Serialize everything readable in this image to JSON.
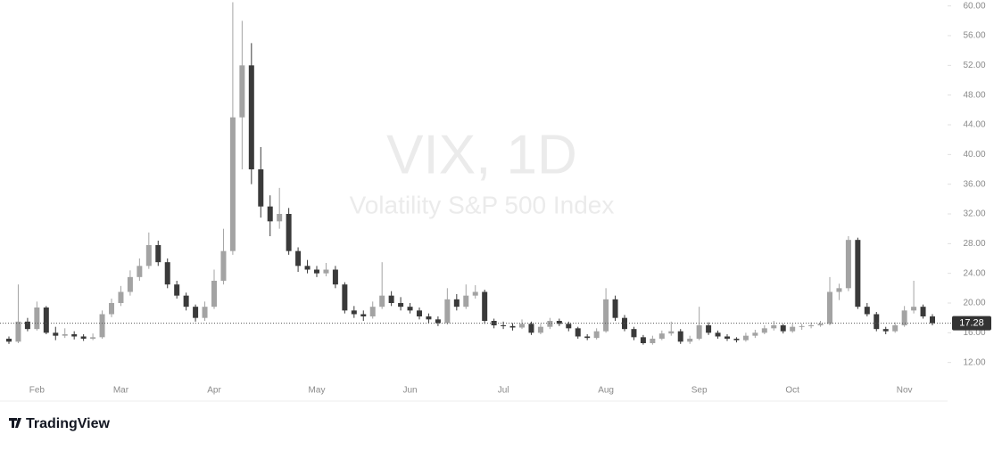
{
  "chart_data": {
    "type": "candlestick",
    "title": "VIX, 1D",
    "subtitle": "Volatility S&P 500 Index",
    "brand": "TradingView",
    "up_color": "#a3a3a3",
    "down_color": "#3a3a3a",
    "ylim": [
      6.8,
      60.8
    ],
    "yticks": [
      {
        "value": 12,
        "label": "12.00"
      },
      {
        "value": 16,
        "label": "16.00"
      },
      {
        "value": 20,
        "label": "20.00"
      },
      {
        "value": 24,
        "label": "24.00"
      },
      {
        "value": 28,
        "label": "28.00"
      },
      {
        "value": 32,
        "label": "32.00"
      },
      {
        "value": 36,
        "label": "36.00"
      },
      {
        "value": 40,
        "label": "40.00"
      },
      {
        "value": 44,
        "label": "44.00"
      },
      {
        "value": 48,
        "label": "48.00"
      },
      {
        "value": 52,
        "label": "52.00"
      },
      {
        "value": 56,
        "label": "56.00"
      },
      {
        "value": 60,
        "label": "60.00"
      }
    ],
    "last_price": 17.28,
    "categories": [
      null,
      null,
      null,
      "Feb",
      null,
      null,
      null,
      null,
      null,
      null,
      null,
      null,
      "Mar",
      null,
      null,
      null,
      null,
      null,
      null,
      null,
      null,
      null,
      "Apr",
      null,
      null,
      null,
      null,
      null,
      null,
      null,
      null,
      null,
      null,
      "May",
      null,
      null,
      null,
      null,
      null,
      null,
      null,
      null,
      null,
      "Jun",
      null,
      null,
      null,
      null,
      null,
      null,
      null,
      null,
      null,
      "Jul",
      null,
      null,
      null,
      null,
      null,
      null,
      null,
      null,
      null,
      null,
      "Aug",
      null,
      null,
      null,
      null,
      null,
      null,
      null,
      null,
      null,
      "Sep",
      null,
      null,
      null,
      null,
      null,
      null,
      null,
      null,
      null,
      "Oct",
      null,
      null,
      null,
      null,
      null,
      null,
      null,
      null,
      null,
      null,
      null,
      "Nov",
      null,
      null,
      null
    ],
    "ohlc": [
      [
        15.2,
        15.5,
        14.5,
        14.8
      ],
      [
        14.8,
        22.5,
        14.6,
        17.5
      ],
      [
        17.5,
        18,
        16.2,
        16.5
      ],
      [
        16.5,
        20.2,
        16.3,
        19.4
      ],
      [
        19.4,
        19.6,
        15.8,
        16.0
      ],
      [
        16.0,
        16.8,
        15.0,
        15.6
      ],
      [
        15.6,
        16.6,
        15.3,
        15.8
      ],
      [
        15.8,
        16.2,
        15.1,
        15.5
      ],
      [
        15.5,
        15.8,
        14.9,
        15.2
      ],
      [
        15.2,
        15.9,
        15.0,
        15.4
      ],
      [
        15.4,
        19.0,
        15.2,
        18.5
      ],
      [
        18.5,
        20.6,
        18.1,
        20.0
      ],
      [
        20.0,
        22.3,
        19.6,
        21.5
      ],
      [
        21.5,
        24.4,
        21.0,
        23.5
      ],
      [
        23.5,
        26.0,
        23.0,
        25.0
      ],
      [
        25.0,
        29.5,
        24.6,
        27.8
      ],
      [
        27.8,
        28.4,
        25.0,
        25.5
      ],
      [
        25.5,
        26.0,
        22.0,
        22.5
      ],
      [
        22.5,
        23.0,
        20.6,
        21.0
      ],
      [
        21.0,
        21.4,
        19.0,
        19.5
      ],
      [
        19.5,
        19.8,
        17.5,
        18.0
      ],
      [
        18.0,
        20.2,
        17.6,
        19.5
      ],
      [
        19.5,
        24.5,
        19.2,
        23.0
      ],
      [
        23.0,
        30.0,
        22.5,
        27.0
      ],
      [
        27.0,
        60.5,
        26.5,
        45.0
      ],
      [
        45.0,
        58.0,
        38.0,
        52.0
      ],
      [
        52.0,
        55.0,
        36.0,
        38.0
      ],
      [
        38.0,
        41.0,
        31.5,
        33.0
      ],
      [
        33.0,
        34.5,
        29.0,
        31.0
      ],
      [
        31.0,
        35.5,
        30.0,
        32.0
      ],
      [
        32.0,
        32.8,
        26.5,
        27.0
      ],
      [
        27.0,
        27.5,
        24.2,
        25.0
      ],
      [
        25.0,
        25.8,
        24.0,
        24.5
      ],
      [
        24.5,
        25.0,
        23.5,
        24.0
      ],
      [
        24.0,
        25.4,
        23.6,
        24.5
      ],
      [
        24.5,
        25.0,
        22.0,
        22.5
      ],
      [
        22.5,
        22.8,
        18.6,
        19.0
      ],
      [
        19.0,
        19.6,
        18.0,
        18.5
      ],
      [
        18.5,
        19.0,
        17.6,
        18.2
      ],
      [
        18.2,
        20.2,
        17.9,
        19.5
      ],
      [
        19.5,
        25.5,
        19.2,
        21.0
      ],
      [
        21.0,
        21.6,
        19.6,
        20.0
      ],
      [
        20.0,
        20.8,
        19.0,
        19.5
      ],
      [
        19.5,
        20.0,
        18.6,
        19.0
      ],
      [
        19.0,
        19.4,
        17.8,
        18.2
      ],
      [
        18.2,
        18.6,
        17.3,
        17.8
      ],
      [
        17.8,
        18.2,
        16.9,
        17.3
      ],
      [
        17.3,
        22.0,
        17.1,
        20.5
      ],
      [
        20.5,
        21.2,
        19.0,
        19.5
      ],
      [
        19.5,
        22.5,
        19.2,
        21.0
      ],
      [
        21.0,
        22.4,
        20.6,
        21.5
      ],
      [
        21.5,
        21.8,
        17.2,
        17.6
      ],
      [
        17.6,
        17.9,
        16.6,
        17.0
      ],
      [
        17.0,
        17.5,
        16.5,
        16.9
      ],
      [
        16.9,
        17.3,
        16.3,
        16.7
      ],
      [
        16.7,
        17.8,
        16.5,
        17.2
      ],
      [
        17.2,
        17.5,
        15.7,
        16.0
      ],
      [
        16.0,
        17.2,
        15.8,
        16.8
      ],
      [
        16.8,
        18.0,
        16.5,
        17.6
      ],
      [
        17.6,
        17.9,
        16.9,
        17.2
      ],
      [
        17.2,
        17.5,
        16.2,
        16.6
      ],
      [
        16.6,
        16.8,
        15.2,
        15.5
      ],
      [
        15.5,
        15.8,
        15.0,
        15.3
      ],
      [
        15.3,
        16.6,
        15.1,
        16.2
      ],
      [
        16.2,
        22.0,
        16.0,
        20.5
      ],
      [
        20.5,
        21.0,
        17.6,
        18.0
      ],
      [
        18.0,
        18.4,
        16.2,
        16.5
      ],
      [
        16.5,
        16.8,
        15.0,
        15.4
      ],
      [
        15.4,
        15.7,
        14.4,
        14.6
      ],
      [
        14.6,
        15.6,
        14.4,
        15.2
      ],
      [
        15.2,
        16.3,
        15.0,
        15.9
      ],
      [
        15.9,
        17.5,
        15.6,
        16.2
      ],
      [
        16.2,
        16.5,
        14.5,
        14.8
      ],
      [
        14.8,
        15.6,
        14.5,
        15.2
      ],
      [
        15.2,
        19.5,
        15.0,
        17.0
      ],
      [
        17.0,
        17.4,
        15.7,
        16.0
      ],
      [
        16.0,
        16.3,
        15.2,
        15.5
      ],
      [
        15.5,
        15.8,
        14.9,
        15.2
      ],
      [
        15.2,
        15.4,
        14.7,
        15.0
      ],
      [
        15.0,
        16.0,
        14.8,
        15.6
      ],
      [
        15.6,
        16.4,
        15.3,
        16.0
      ],
      [
        16.0,
        17.0,
        15.8,
        16.6
      ],
      [
        16.6,
        17.6,
        16.3,
        17.0
      ],
      [
        17.0,
        17.2,
        15.9,
        16.2
      ],
      [
        16.2,
        17.2,
        16.0,
        16.8
      ],
      [
        16.8,
        17.2,
        16.4,
        16.9
      ],
      [
        16.9,
        17.4,
        16.6,
        17.0
      ],
      [
        17.0,
        17.6,
        16.8,
        17.2
      ],
      [
        17.2,
        23.5,
        17.0,
        21.5
      ],
      [
        21.5,
        22.6,
        20.4,
        22.0
      ],
      [
        22.0,
        29.0,
        21.6,
        28.5
      ],
      [
        28.5,
        28.8,
        19.2,
        19.5
      ],
      [
        19.5,
        20.0,
        18.2,
        18.5
      ],
      [
        18.5,
        18.8,
        16.2,
        16.5
      ],
      [
        16.5,
        16.8,
        15.8,
        16.2
      ],
      [
        16.2,
        17.4,
        16.0,
        17.0
      ],
      [
        17.0,
        19.6,
        16.8,
        19.0
      ],
      [
        19.0,
        23.0,
        18.6,
        19.5
      ],
      [
        19.5,
        19.8,
        17.9,
        18.2
      ],
      [
        18.2,
        18.5,
        17.0,
        17.28
      ]
    ]
  }
}
